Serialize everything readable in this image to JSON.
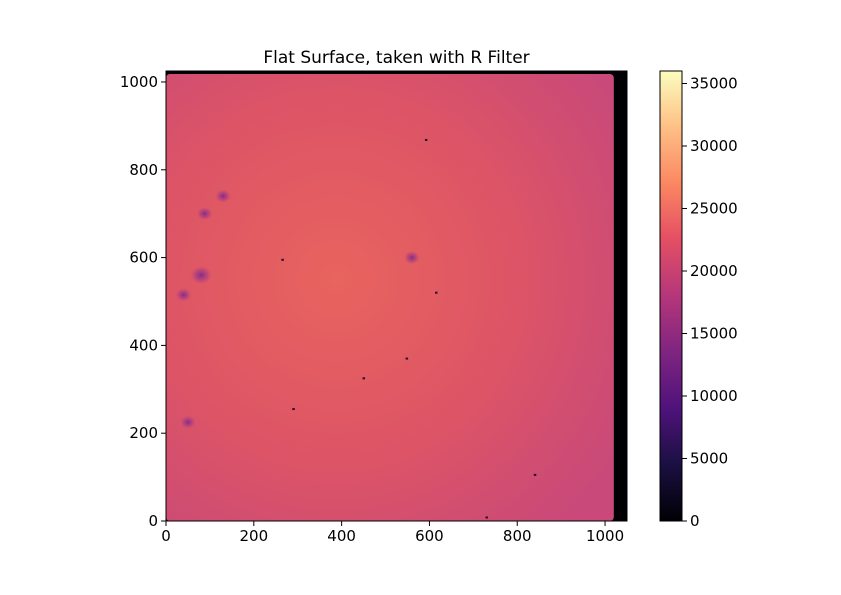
{
  "chart_data": {
    "type": "heatmap",
    "title": "Flat Surface, taken with R Filter",
    "xlabel": "",
    "ylabel": "",
    "xlim": [
      0,
      1050
    ],
    "ylim": [
      0,
      1025
    ],
    "xticks": [
      0,
      200,
      400,
      600,
      800,
      1000
    ],
    "yticks": [
      0,
      200,
      400,
      600,
      800,
      1000
    ],
    "colormap": "magma",
    "colorbar": {
      "range": [
        0,
        36000
      ],
      "ticks": [
        0,
        5000,
        10000,
        15000,
        20000,
        25000,
        30000,
        35000
      ]
    },
    "image_summary": {
      "typical_value": 20500,
      "center_value": 22500,
      "edge_value": 18500,
      "dead_region_x_start": 1020,
      "dead_region_value": 0,
      "colors": {
        "center": "#e8645e",
        "middle": "#dc5466",
        "edge": "#c8497a",
        "dead": "#000004"
      }
    },
    "dust_blobs": [
      {
        "x": 80,
        "y": 560,
        "value": 12000
      },
      {
        "x": 130,
        "y": 740,
        "value": 15500
      },
      {
        "x": 88,
        "y": 700,
        "value": 16500
      },
      {
        "x": 50,
        "y": 225,
        "value": 14000
      },
      {
        "x": 560,
        "y": 600,
        "value": 18000
      },
      {
        "x": 40,
        "y": 515,
        "value": 18000
      }
    ],
    "specks": [
      {
        "x": 592,
        "y": 868
      },
      {
        "x": 265,
        "y": 595
      },
      {
        "x": 548,
        "y": 370
      },
      {
        "x": 840,
        "y": 105
      },
      {
        "x": 290,
        "y": 255
      },
      {
        "x": 615,
        "y": 520
      },
      {
        "x": 450,
        "y": 325
      },
      {
        "x": 730,
        "y": 8
      }
    ]
  }
}
